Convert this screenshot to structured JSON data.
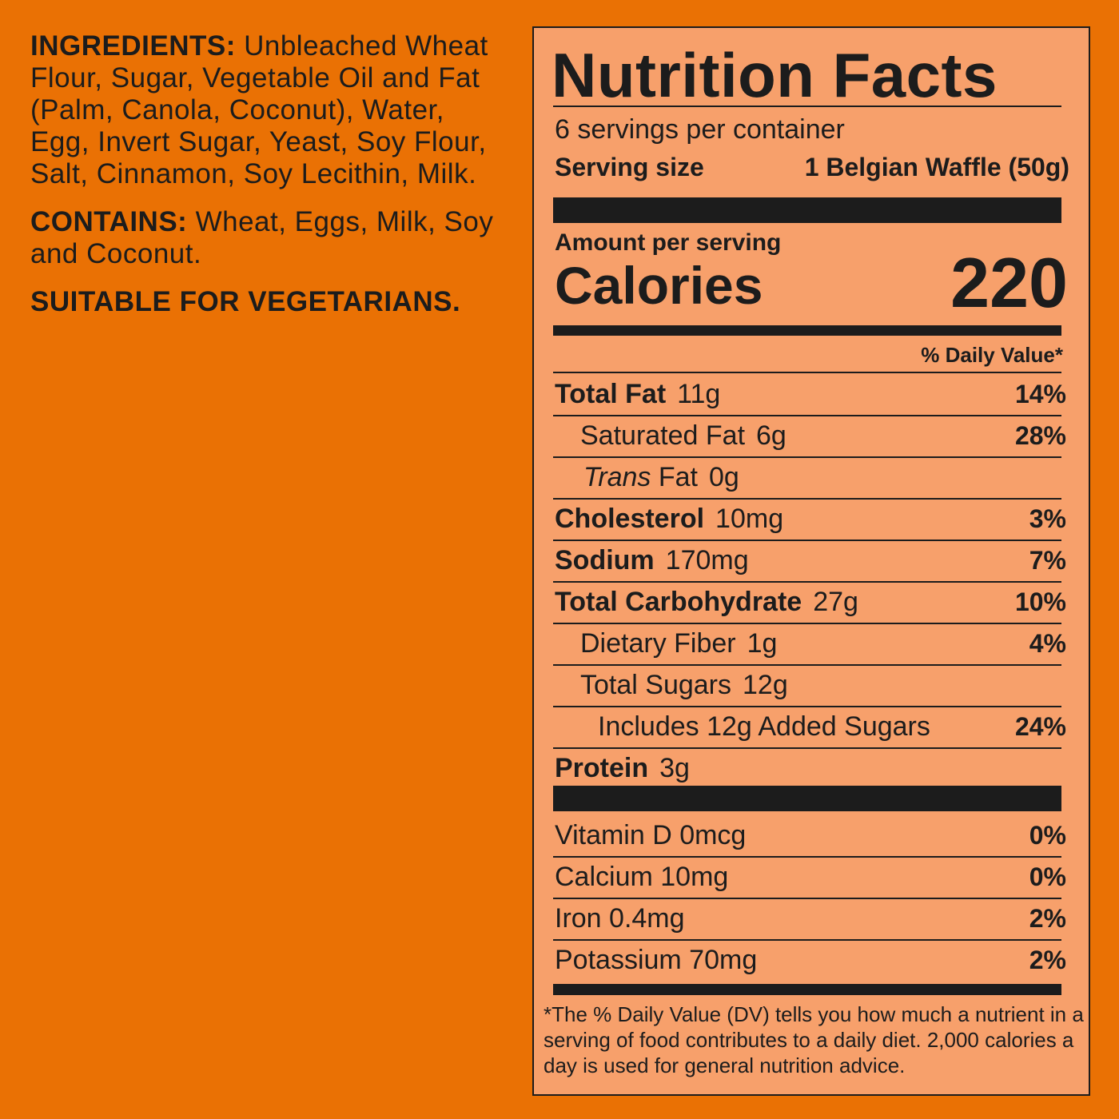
{
  "ingredients": {
    "ingredients_label": "INGREDIENTS:",
    "ingredients_text": "Unbleached Wheat Flour, Sugar, Vegetable Oil and Fat (Palm, Canola, Coconut), Water, Egg, Invert Sugar, Yeast, Soy Flour, Salt, Cinnamon, Soy Lecithin, Milk.",
    "contains_label": "CONTAINS:",
    "contains_text": "Wheat, Eggs, Milk, Soy and Coconut.",
    "vegetarian": "SUITABLE FOR VEGETARIANS."
  },
  "nutrition": {
    "title": "Nutrition Facts",
    "servings": "6 servings per container",
    "serving_size_label": "Serving size",
    "serving_size_value": "1 Belgian Waffle (50g)",
    "amount_per_serving": "Amount per serving",
    "calories_label": "Calories",
    "calories_value": "220",
    "dv_header": "% Daily Value*",
    "rows": [
      {
        "name": "Total Fat",
        "amount": "11g",
        "dv": "14%"
      },
      {
        "name": "Saturated Fat",
        "amount": "6g",
        "dv": "28%"
      },
      {
        "name_italic": "Trans",
        "name": "Fat",
        "amount": "0g"
      },
      {
        "name": "Cholesterol",
        "amount": "10mg",
        "dv": "3%"
      },
      {
        "name": "Sodium",
        "amount": "170mg",
        "dv": "7%"
      },
      {
        "name": "Total Carbohydrate",
        "amount": "27g",
        "dv": "10%"
      },
      {
        "name": "Dietary Fiber",
        "amount": "1g",
        "dv": "4%"
      },
      {
        "name": "Total Sugars",
        "amount": "12g"
      },
      {
        "name": "Includes 12g Added Sugars",
        "dv": "24%"
      },
      {
        "name": "Protein",
        "amount": "3g"
      }
    ],
    "vitamins": [
      {
        "name": "Vitamin D 0mcg",
        "dv": "0%"
      },
      {
        "name": "Calcium 10mg",
        "dv": "0%"
      },
      {
        "name": "Iron 0.4mg",
        "dv": "2%"
      },
      {
        "name": "Potassium 70mg",
        "dv": "2%"
      }
    ],
    "footnote": "*The % Daily Value (DV) tells you how much a nutrient in a serving of food contributes to a daily diet. 2,000 calories a day is used for general nutrition advice."
  },
  "colors": {
    "background": "#EA7104",
    "panel": "#F7A06B",
    "text": "#1c1c1c"
  }
}
